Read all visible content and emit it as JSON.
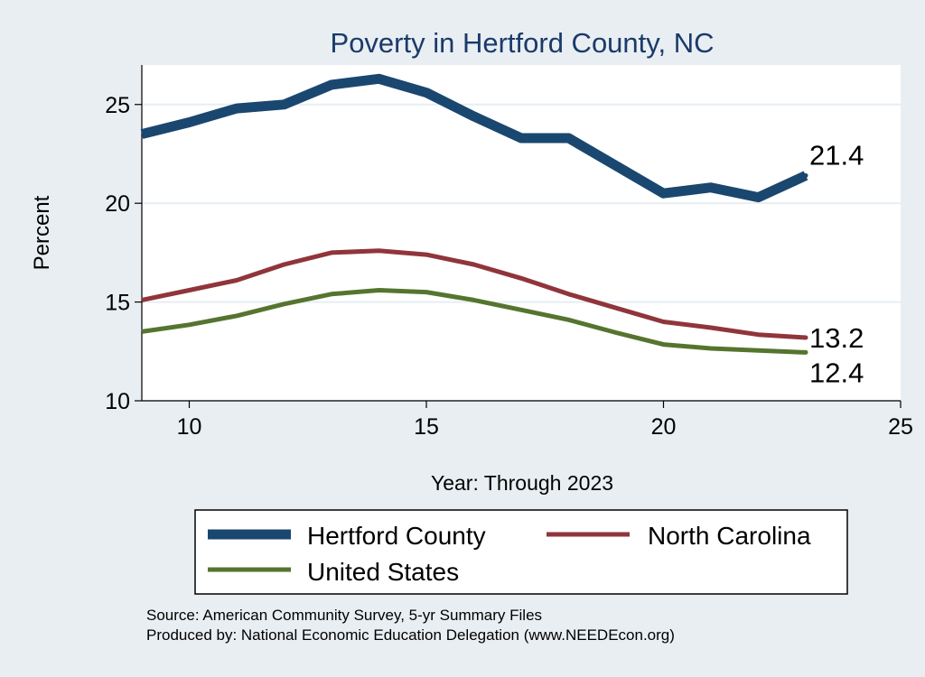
{
  "chart_data": {
    "type": "line",
    "title": "Poverty in Hertford County, NC",
    "xlabel": "Year: Through 2023",
    "ylabel": "Percent",
    "xlim": [
      9,
      25
    ],
    "ylim": [
      10,
      27
    ],
    "xticks": [
      10,
      15,
      20,
      25
    ],
    "yticks": [
      10,
      15,
      20,
      25
    ],
    "grid": true,
    "legend_position": "bottom",
    "x": [
      9,
      10,
      11,
      12,
      13,
      14,
      15,
      16,
      17,
      18,
      19,
      20,
      21,
      22,
      23
    ],
    "series": [
      {
        "name": "Hertford County",
        "color": "#1a476f",
        "values": [
          23.5,
          24.1,
          24.8,
          25.0,
          26.0,
          26.3,
          25.6,
          24.4,
          23.3,
          23.3,
          21.9,
          20.5,
          20.8,
          20.3,
          21.4
        ],
        "end_label": "21.4"
      },
      {
        "name": "North Carolina",
        "color": "#90353b",
        "values": [
          15.1,
          15.6,
          16.1,
          16.9,
          17.5,
          17.6,
          17.4,
          16.9,
          16.2,
          15.4,
          14.7,
          14.0,
          13.7,
          13.35,
          13.2
        ],
        "end_label": "13.2"
      },
      {
        "name": "United States",
        "color": "#55752f",
        "values": [
          13.5,
          13.85,
          14.3,
          14.9,
          15.4,
          15.6,
          15.5,
          15.1,
          14.6,
          14.1,
          13.45,
          12.85,
          12.65,
          12.55,
          12.45
        ],
        "end_label": "12.4"
      }
    ],
    "source_lines": [
      "Source: American Community Survey, 5-yr Summary Files",
      "Produced by: National Economic Education Delegation (www.NEEDEcon.org)"
    ]
  }
}
